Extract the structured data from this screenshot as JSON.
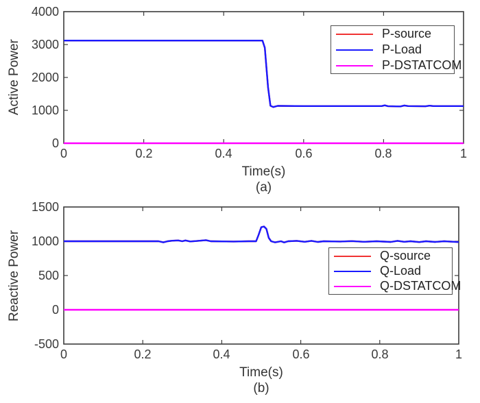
{
  "figure": {
    "background": "#ffffff",
    "axis_color": "#3c3c3c",
    "text_color": "#333333"
  },
  "chart_data": [
    {
      "type": "line",
      "title": "",
      "xlabel": "Time(s)",
      "ylabel": "Active Power",
      "caption": "(a)",
      "xlim": [
        0,
        1
      ],
      "ylim": [
        0,
        4000
      ],
      "xticks": [
        0,
        0.2,
        0.4,
        0.6,
        0.8,
        1
      ],
      "xtick_labels": [
        "0",
        "0.2",
        "0.4",
        "0.6",
        "0.8",
        "1"
      ],
      "yticks": [
        0,
        1000,
        2000,
        3000,
        4000
      ],
      "ytick_labels": [
        "0",
        "1000",
        "2000",
        "3000",
        "4000"
      ],
      "grid": false,
      "legend_position": "upper-right",
      "series": [
        {
          "name": "P-source",
          "color": "#f03232",
          "points": [
            [
              0,
              3120
            ],
            [
              0.3,
              3120
            ],
            [
              0.497,
              3120
            ],
            [
              0.503,
              2900
            ],
            [
              0.511,
              1700
            ],
            [
              0.517,
              1140
            ],
            [
              0.524,
              1100
            ],
            [
              0.535,
              1135
            ],
            [
              0.6,
              1130
            ],
            [
              0.795,
              1130
            ],
            [
              0.803,
              1152
            ],
            [
              0.811,
              1128
            ],
            [
              0.842,
              1118
            ],
            [
              0.852,
              1148
            ],
            [
              0.862,
              1130
            ],
            [
              0.905,
              1122
            ],
            [
              0.915,
              1142
            ],
            [
              0.925,
              1130
            ],
            [
              1,
              1130
            ]
          ]
        },
        {
          "name": "P-Load",
          "color": "#1a1aff",
          "points": [
            [
              0,
              3120
            ],
            [
              0.3,
              3120
            ],
            [
              0.497,
              3120
            ],
            [
              0.503,
              2900
            ],
            [
              0.511,
              1700
            ],
            [
              0.517,
              1140
            ],
            [
              0.524,
              1100
            ],
            [
              0.535,
              1135
            ],
            [
              0.6,
              1130
            ],
            [
              0.795,
              1130
            ],
            [
              0.803,
              1152
            ],
            [
              0.811,
              1128
            ],
            [
              0.842,
              1118
            ],
            [
              0.852,
              1148
            ],
            [
              0.862,
              1130
            ],
            [
              0.905,
              1122
            ],
            [
              0.915,
              1142
            ],
            [
              0.925,
              1130
            ],
            [
              1,
              1130
            ]
          ]
        },
        {
          "name": "P-DSTATCOM",
          "color": "#ff00ff",
          "points": [
            [
              0,
              0
            ],
            [
              1,
              0
            ]
          ]
        }
      ]
    },
    {
      "type": "line",
      "title": "",
      "xlabel": "Time(s)",
      "ylabel": "Reactive Power",
      "caption": "(b)",
      "xlim": [
        0,
        1
      ],
      "ylim": [
        -500,
        1500
      ],
      "xticks": [
        0,
        0.2,
        0.4,
        0.6,
        0.8,
        1
      ],
      "xtick_labels": [
        "0",
        "0.2",
        "0.4",
        "0.6",
        "0.8",
        "1"
      ],
      "yticks": [
        -500,
        0,
        500,
        1000,
        1500
      ],
      "ytick_labels": [
        "-500",
        "0",
        "500",
        "1000",
        "1500"
      ],
      "grid": false,
      "legend_position": "right",
      "series": [
        {
          "name": "Q-source",
          "color": "#f03232",
          "points": [
            [
              0,
              1000
            ],
            [
              0.07,
              1000
            ],
            [
              0.24,
              1000
            ],
            [
              0.252,
              984
            ],
            [
              0.263,
              1000
            ],
            [
              0.275,
              1008
            ],
            [
              0.29,
              1012
            ],
            [
              0.3,
              1000
            ],
            [
              0.308,
              1012
            ],
            [
              0.32,
              997
            ],
            [
              0.335,
              1003
            ],
            [
              0.36,
              1016
            ],
            [
              0.372,
              1000
            ],
            [
              0.43,
              996
            ],
            [
              0.468,
              1000
            ],
            [
              0.487,
              1000
            ],
            [
              0.493,
              1090
            ],
            [
              0.5,
              1205
            ],
            [
              0.507,
              1215
            ],
            [
              0.513,
              1180
            ],
            [
              0.519,
              1050
            ],
            [
              0.525,
              1000
            ],
            [
              0.535,
              984
            ],
            [
              0.55,
              1000
            ],
            [
              0.558,
              983
            ],
            [
              0.568,
              1000
            ],
            [
              0.59,
              1006
            ],
            [
              0.61,
              992
            ],
            [
              0.627,
              1006
            ],
            [
              0.643,
              990
            ],
            [
              0.658,
              1000
            ],
            [
              0.7,
              996
            ],
            [
              0.73,
              1002
            ],
            [
              0.76,
              992
            ],
            [
              0.792,
              1000
            ],
            [
              0.828,
              990
            ],
            [
              0.845,
              1006
            ],
            [
              0.862,
              992
            ],
            [
              0.878,
              1000
            ],
            [
              0.9,
              988
            ],
            [
              0.917,
              1000
            ],
            [
              0.94,
              990
            ],
            [
              0.963,
              1000
            ],
            [
              1,
              988
            ]
          ]
        },
        {
          "name": "Q-Load",
          "color": "#1a1aff",
          "points": [
            [
              0,
              1000
            ],
            [
              0.07,
              1000
            ],
            [
              0.24,
              1000
            ],
            [
              0.252,
              984
            ],
            [
              0.263,
              1000
            ],
            [
              0.275,
              1008
            ],
            [
              0.29,
              1012
            ],
            [
              0.3,
              1000
            ],
            [
              0.308,
              1012
            ],
            [
              0.32,
              997
            ],
            [
              0.335,
              1003
            ],
            [
              0.36,
              1016
            ],
            [
              0.372,
              1000
            ],
            [
              0.43,
              996
            ],
            [
              0.468,
              1000
            ],
            [
              0.487,
              1000
            ],
            [
              0.493,
              1090
            ],
            [
              0.5,
              1205
            ],
            [
              0.507,
              1215
            ],
            [
              0.513,
              1180
            ],
            [
              0.519,
              1050
            ],
            [
              0.525,
              1000
            ],
            [
              0.535,
              984
            ],
            [
              0.55,
              1000
            ],
            [
              0.558,
              983
            ],
            [
              0.568,
              1000
            ],
            [
              0.59,
              1006
            ],
            [
              0.61,
              992
            ],
            [
              0.627,
              1006
            ],
            [
              0.643,
              990
            ],
            [
              0.658,
              1000
            ],
            [
              0.7,
              996
            ],
            [
              0.73,
              1002
            ],
            [
              0.76,
              992
            ],
            [
              0.792,
              1000
            ],
            [
              0.828,
              990
            ],
            [
              0.845,
              1006
            ],
            [
              0.862,
              992
            ],
            [
              0.878,
              1000
            ],
            [
              0.9,
              988
            ],
            [
              0.917,
              1000
            ],
            [
              0.94,
              990
            ],
            [
              0.963,
              1000
            ],
            [
              1,
              988
            ]
          ]
        },
        {
          "name": "Q-DSTATCOM",
          "color": "#ff00ff",
          "points": [
            [
              0,
              0
            ],
            [
              1,
              0
            ]
          ]
        }
      ]
    }
  ]
}
